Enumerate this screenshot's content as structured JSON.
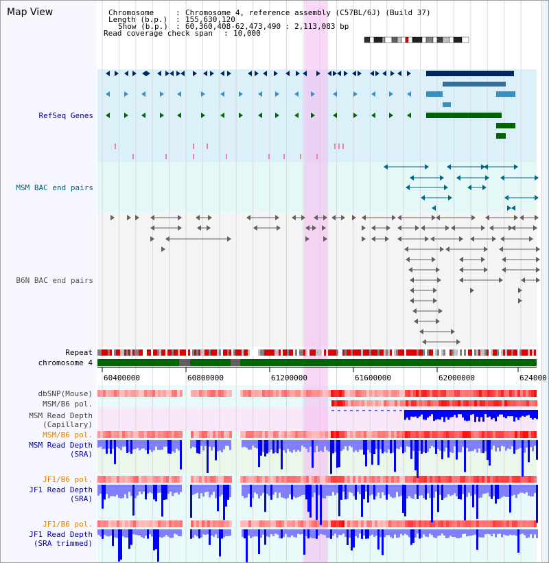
{
  "view": {
    "title": "Map View",
    "info": {
      "chromosome_label": "Chromosome",
      "chromosome_value": "Chromosome 4, reference assembly (C57BL/6J) (Build 37)",
      "length_label": "Length (b.p.)",
      "length_value": "155,630,120",
      "show_label": "Show (b.p.)",
      "show_value": "60,360,408-62,473,490 : 2,113,083 bp",
      "coverage_label": "Read coverage check span",
      "coverage_value": "10,000"
    }
  },
  "tracks": {
    "refseq": "RefSeq Genes",
    "msm_bac": "MSM BAC end pairs",
    "b6n_bac": "B6N BAC end pairs",
    "repeat": "Repeat",
    "chromosome": "chromosome 4",
    "dbsnp": "dbSNP(Mouse)",
    "msm_b6_pol_1": "MSM/B6 pol.",
    "msm_depth_cap_1": "MSM Read Depth",
    "msm_depth_cap_2": "(Capillary)",
    "msm_b6_pol_2": "MSM/B6 pol.",
    "msm_depth_sra_1": "MSM Read Depth",
    "msm_depth_sra_2": "(SRA)",
    "jf1_b6_pol_1": "JF1/B6 pol.",
    "jf1_depth_sra_1": "JF1 Read Depth",
    "jf1_depth_sra_2": "(SRA)",
    "jf1_b6_pol_2": "JF1/B6 pol.",
    "jf1_depth_trim_1": "JF1 Read Depth",
    "jf1_depth_trim_2": "(SRA trimmed)"
  },
  "axis": {
    "ticks": [
      "60400000",
      "60800000",
      "61200000",
      "61600000",
      "62000000",
      "624000"
    ]
  },
  "colors": {
    "refseq_dark": "#002860",
    "refseq_mid": "#3890c0",
    "refseq_green": "#006400",
    "bac_line": "#606060",
    "highlight": "#f5b8f0",
    "depth_blue": "#0000ff",
    "depth_light": "#8080ff",
    "pol_red": "#ff0000",
    "pol_pink": "#f8c0c0"
  }
}
